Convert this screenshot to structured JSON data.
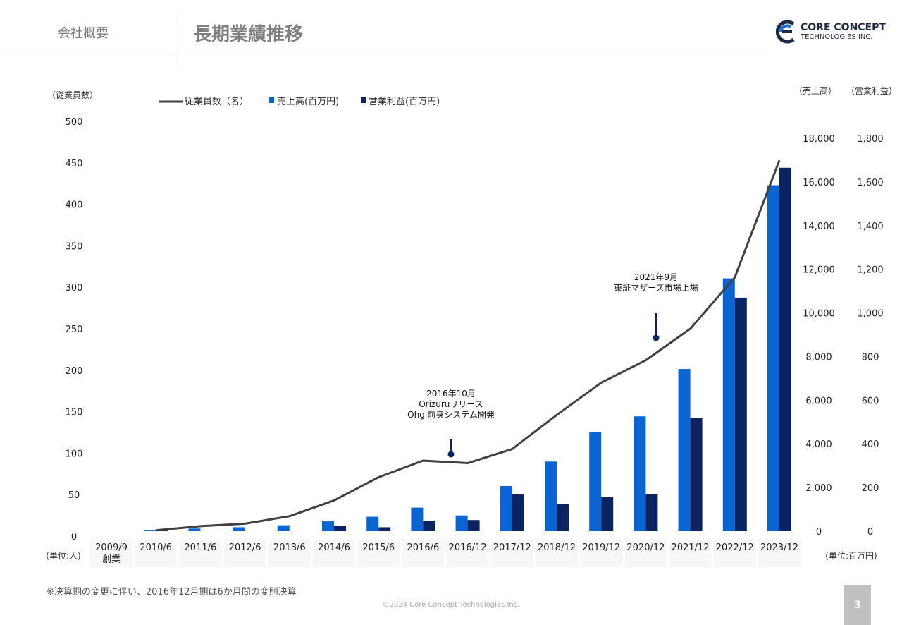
{
  "header": {
    "section": "会社概要",
    "title": "長期業績推移",
    "logo_line1": "CORE CONCEPT",
    "logo_line2": "TECHNOLOGIES INC."
  },
  "footer": {
    "note": "※決算期の変更に伴い、2016年12月期は6か月間の変則決算",
    "copyright": "©2024 Core Concept Technologies Inc.",
    "page": "3"
  },
  "colors": {
    "sales": "#0a64d2",
    "profit": "#0b2360",
    "employees": "#404040"
  },
  "chart_data": {
    "type": "bar+line",
    "categories": [
      "2009/9\n創業",
      "2010/6",
      "2011/6",
      "2012/6",
      "2013/6",
      "2014/6",
      "2015/6",
      "2016/6",
      "2016/12",
      "2017/12",
      "2018/12",
      "2019/12",
      "2020/12",
      "2021/12",
      "2022/12",
      "2023/12"
    ],
    "left_axis": {
      "label": "（従業員数）",
      "unit": "(単位:人)",
      "ylim": [
        0,
        500
      ],
      "ticks": [
        0,
        50,
        100,
        150,
        200,
        250,
        300,
        350,
        400,
        450,
        500
      ]
    },
    "right_axis_sales": {
      "label": "（売上高）",
      "ylim": [
        0,
        18000
      ],
      "ticks": [
        "0",
        "2,000",
        "4,000",
        "6,000",
        "8,000",
        "10,000",
        "12,000",
        "14,000",
        "16,000",
        "18,000"
      ]
    },
    "right_axis_profit": {
      "label": "（営業利益）",
      "ylim": [
        0,
        1800
      ],
      "ticks": [
        "0",
        "200",
        "400",
        "600",
        "800",
        "1,000",
        "1,200",
        "1,400",
        "1,600",
        "1,800"
      ]
    },
    "right_unit": "(単位:百万円)",
    "series": [
      {
        "name": "従業員数（名）",
        "type": "line",
        "axis": "left",
        "values": [
          null,
          7,
          12,
          15,
          24,
          43,
          71,
          91,
          88,
          105,
          146,
          185,
          212,
          250,
          312,
          453
        ]
      },
      {
        "name": "売上高(百万円)",
        "type": "bar",
        "axis": "sales",
        "values": [
          null,
          30,
          120,
          180,
          270,
          450,
          660,
          1080,
          720,
          2070,
          3190,
          4540,
          5260,
          7430,
          11580,
          15850
        ]
      },
      {
        "name": "営業利益(百万円)",
        "type": "bar",
        "axis": "profit",
        "values": [
          null,
          3,
          null,
          null,
          null,
          24,
          18,
          48,
          51,
          168,
          123,
          156,
          168,
          520,
          1070,
          1665
        ]
      }
    ],
    "annotations": [
      {
        "category": "2016/12",
        "employees": 88,
        "lines": [
          "2016年10月",
          "Orizuruリリース",
          "Ohgi前身システム開発"
        ]
      },
      {
        "category": "2021/12",
        "employees": 230,
        "lines": [
          "2021年9月",
          "東証マザーズ市場上場"
        ]
      }
    ],
    "legend": "top"
  }
}
